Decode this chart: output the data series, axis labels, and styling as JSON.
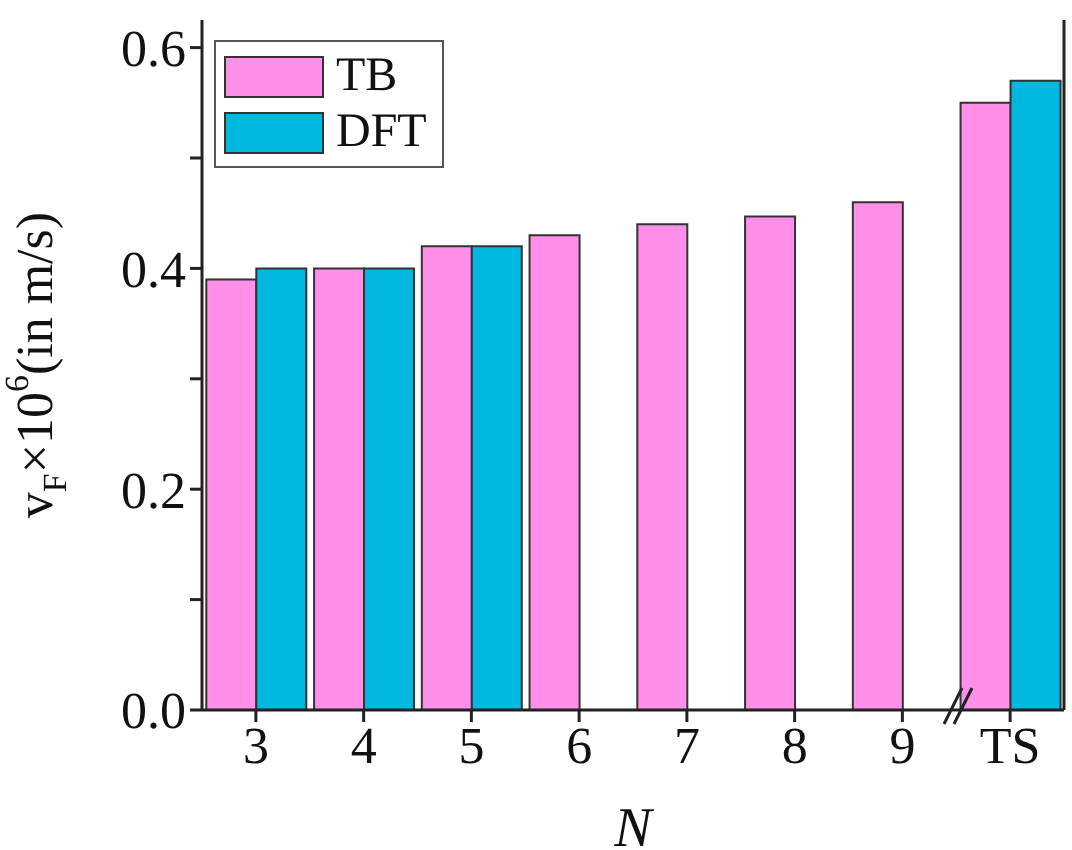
{
  "chart_data": {
    "type": "bar",
    "xlabel": "N",
    "ylabel": "v$_{F}$×10$^{6}$(in m/s)",
    "categories": [
      "3",
      "4",
      "5",
      "6",
      "7",
      "8",
      "9",
      "TS"
    ],
    "series": [
      {
        "name": "TB",
        "color": "#ff8fe8",
        "values": [
          0.39,
          0.4,
          0.42,
          0.43,
          0.44,
          0.447,
          0.46,
          0.55
        ]
      },
      {
        "name": "DFT",
        "color": "#00b8e0",
        "values": [
          0.4,
          0.4,
          0.42,
          null,
          null,
          null,
          null,
          0.57
        ]
      }
    ],
    "ylim": [
      0,
      0.625
    ],
    "yticks": [
      {
        "value": 0,
        "label": "0.0"
      },
      {
        "value": 0.1,
        "label": null
      },
      {
        "value": 0.2,
        "label": "0.2"
      },
      {
        "value": 0.3,
        "label": null
      },
      {
        "value": 0.4,
        "label": "0.4"
      },
      {
        "value": 0.5,
        "label": null
      },
      {
        "value": 0.6,
        "label": "0.6"
      }
    ],
    "grid": false,
    "legend": "top left"
  }
}
